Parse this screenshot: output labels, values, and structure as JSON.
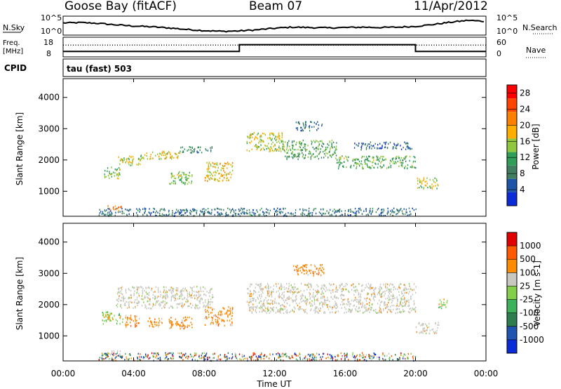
{
  "header": {
    "title": "Goose Bay (fitACF)",
    "beam": "Beam 07",
    "date": "11/Apr/2012"
  },
  "params": {
    "nsky_label": "N.Sky",
    "nsearch_label": "N.Search",
    "freq_label_line1": "Freq.",
    "freq_label_line2": "[MHz]",
    "nave_label": "Nave",
    "cpid_label": "CPID",
    "cpid_value": "tau (fast) 503",
    "noise_ticks": [
      "10^5",
      "10^0"
    ],
    "freq_ticks": [
      "18",
      "8"
    ],
    "nave_ticks": [
      "60",
      "0"
    ]
  },
  "colors": {
    "power_scale": [
      "#0b2bd8",
      "#1c55a8",
      "#3f7f5f",
      "#2f9e57",
      "#8fc83f",
      "#ffae00",
      "#ff7f00",
      "#ff4400",
      "#ff0000"
    ],
    "velocity_scale": [
      "#0b2bd8",
      "#1f55b0",
      "#2e7d4f",
      "#3cb25a",
      "#84cf4a",
      "#c8c8c0",
      "#ff8c00",
      "#ff5a00",
      "#e00000"
    ]
  },
  "chart_data": [
    {
      "type": "line",
      "title": "",
      "series": [
        {
          "name": "N.Sky",
          "x": [
            0,
            1,
            2,
            3,
            4,
            5,
            6,
            7,
            8,
            9,
            10,
            11,
            12,
            13,
            14,
            15,
            16,
            17,
            18,
            19,
            20,
            21,
            22,
            23,
            24
          ],
          "values": [
            3.2,
            3.3,
            3.1,
            2.7,
            2.4,
            2.2,
            1.9,
            1.5,
            1.2,
            1.0,
            1.1,
            1.4,
            1.8,
            2.1,
            2.0,
            1.9,
            2.0,
            2.1,
            2.0,
            2.1,
            2.3,
            2.8,
            3.4,
            3.9,
            3.6
          ]
        }
      ],
      "ylim": [
        0,
        5
      ]
    },
    {
      "type": "line",
      "series": [
        {
          "name": "Freq.",
          "x": [
            0,
            10,
            10,
            20,
            20,
            24
          ],
          "values": [
            10.8,
            10.8,
            14.2,
            14.2,
            10.8,
            10.8
          ]
        },
        {
          "name": "Nave",
          "x": [
            0,
            24
          ],
          "values": [
            14,
            14
          ]
        }
      ],
      "ylim": [
        8,
        18
      ]
    },
    {
      "type": "heatmap",
      "xlabel": "",
      "ylabel": "Slant Range [km]",
      "xlim": [
        0,
        24
      ],
      "ylim": [
        200,
        4600
      ],
      "yticks": [
        1000,
        2000,
        3000,
        4000
      ],
      "colorbar": {
        "label": "Power [dB]",
        "ticks": [
          4,
          8,
          12,
          16,
          20,
          24,
          28
        ],
        "range": [
          0,
          30
        ]
      },
      "bands": [
        {
          "x": [
            2.3,
            3.2
          ],
          "y": [
            1400,
            1800
          ],
          "v": 14
        },
        {
          "x": [
            3.1,
            4.4
          ],
          "y": [
            1850,
            2150
          ],
          "v": 16
        },
        {
          "x": [
            4.4,
            6.6
          ],
          "y": [
            2050,
            2300
          ],
          "v": 17
        },
        {
          "x": [
            6.6,
            8.5
          ],
          "y": [
            2250,
            2450
          ],
          "v": 9
        },
        {
          "x": [
            8.0,
            9.6
          ],
          "y": [
            1350,
            1950
          ],
          "v": 18
        },
        {
          "x": [
            6.0,
            7.3
          ],
          "y": [
            1250,
            1650
          ],
          "v": 14
        },
        {
          "x": [
            10.4,
            12.5
          ],
          "y": [
            2300,
            2900
          ],
          "v": 16
        },
        {
          "x": [
            12.5,
            15.5
          ],
          "y": [
            2050,
            2650
          ],
          "v": 12
        },
        {
          "x": [
            15.5,
            20.0
          ],
          "y": [
            1750,
            2150
          ],
          "v": 13
        },
        {
          "x": [
            20.0,
            21.3
          ],
          "y": [
            1100,
            1450
          ],
          "v": 16
        },
        {
          "x": [
            13.2,
            14.7
          ],
          "y": [
            2950,
            3250
          ],
          "v": 7
        },
        {
          "x": [
            16.5,
            19.8
          ],
          "y": [
            2350,
            2600
          ],
          "v": 6
        },
        {
          "x": [
            2.5,
            3.3
          ],
          "y": [
            400,
            560
          ],
          "v": 22
        },
        {
          "x": [
            2.0,
            20.0
          ],
          "y": [
            230,
            480
          ],
          "v": 7
        }
      ]
    },
    {
      "type": "heatmap",
      "xlabel": "Time UT",
      "ylabel": "Slant Range [km]",
      "xlim": [
        0,
        24
      ],
      "ylim": [
        200,
        4600
      ],
      "yticks": [
        1000,
        2000,
        3000,
        4000
      ],
      "xticks": [
        "00:00",
        "04:00",
        "08:00",
        "12:00",
        "16:00",
        "20:00",
        "00:00"
      ],
      "colorbar": {
        "label": "Velocity [m s-1]",
        "ticks": [
          "1000",
          "500",
          "100",
          "25",
          "-25",
          "-100",
          "-500",
          "-1000"
        ]
      },
      "bands": [
        {
          "x": [
            3.0,
            8.5
          ],
          "y": [
            1900,
            2600
          ],
          "v": "gray"
        },
        {
          "x": [
            2.2,
            3.4
          ],
          "y": [
            1400,
            1800
          ],
          "v": "green"
        },
        {
          "x": [
            3.5,
            4.3
          ],
          "y": [
            1300,
            1700
          ],
          "v": "orange"
        },
        {
          "x": [
            4.8,
            5.6
          ],
          "y": [
            1300,
            1600
          ],
          "v": "orange"
        },
        {
          "x": [
            6.0,
            7.3
          ],
          "y": [
            1250,
            1650
          ],
          "v": "orange"
        },
        {
          "x": [
            8.0,
            9.6
          ],
          "y": [
            1350,
            1950
          ],
          "v": "orange"
        },
        {
          "x": [
            10.4,
            20.0
          ],
          "y": [
            1750,
            2700
          ],
          "v": "gray"
        },
        {
          "x": [
            13.0,
            14.8
          ],
          "y": [
            2950,
            3300
          ],
          "v": "orange"
        },
        {
          "x": [
            20.0,
            21.3
          ],
          "y": [
            1100,
            1450
          ],
          "v": "gray"
        },
        {
          "x": [
            21.3,
            21.8
          ],
          "y": [
            1900,
            2200
          ],
          "v": "green"
        },
        {
          "x": [
            2.5,
            3.3
          ],
          "y": [
            400,
            560
          ],
          "v": "gray"
        },
        {
          "x": [
            2.0,
            20.0
          ],
          "y": [
            230,
            480
          ],
          "v": "mixed"
        }
      ]
    }
  ]
}
